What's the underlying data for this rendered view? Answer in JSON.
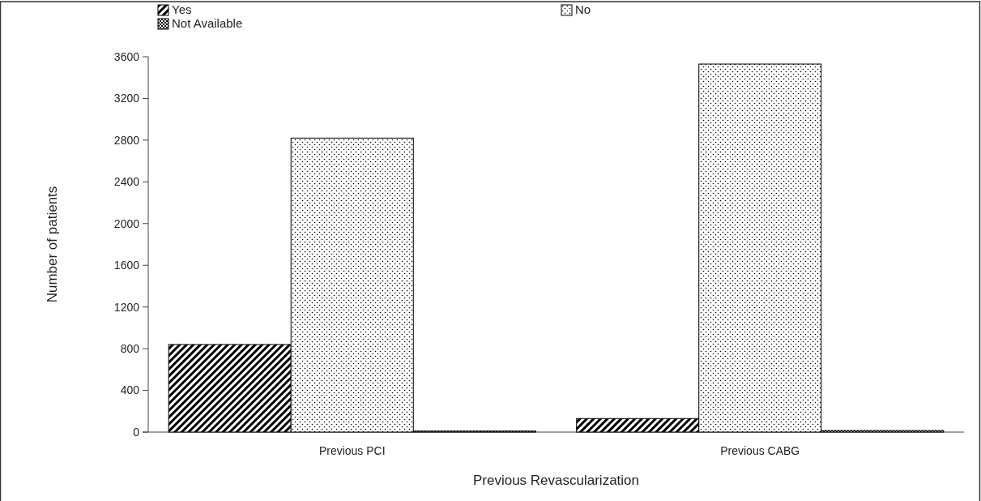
{
  "chart_data": {
    "type": "bar",
    "xlabel": "Previous Revascularization",
    "ylabel": "Number of patients",
    "categories": [
      "Previous PCI",
      "Previous CABG"
    ],
    "series": [
      {
        "name": "Yes",
        "color": "#000000",
        "values": [
          840,
          130
        ]
      },
      {
        "name": "No",
        "color": "#000000",
        "values": [
          2820,
          3530
        ]
      },
      {
        "name": "Not Available",
        "color": "#000000",
        "values": [
          10,
          15
        ]
      }
    ],
    "ylim": [
      0,
      3600
    ],
    "yticks": [
      0,
      400,
      800,
      1200,
      1600,
      2000,
      2400,
      2800,
      3200,
      3600
    ],
    "grid": false,
    "legend": "top"
  }
}
